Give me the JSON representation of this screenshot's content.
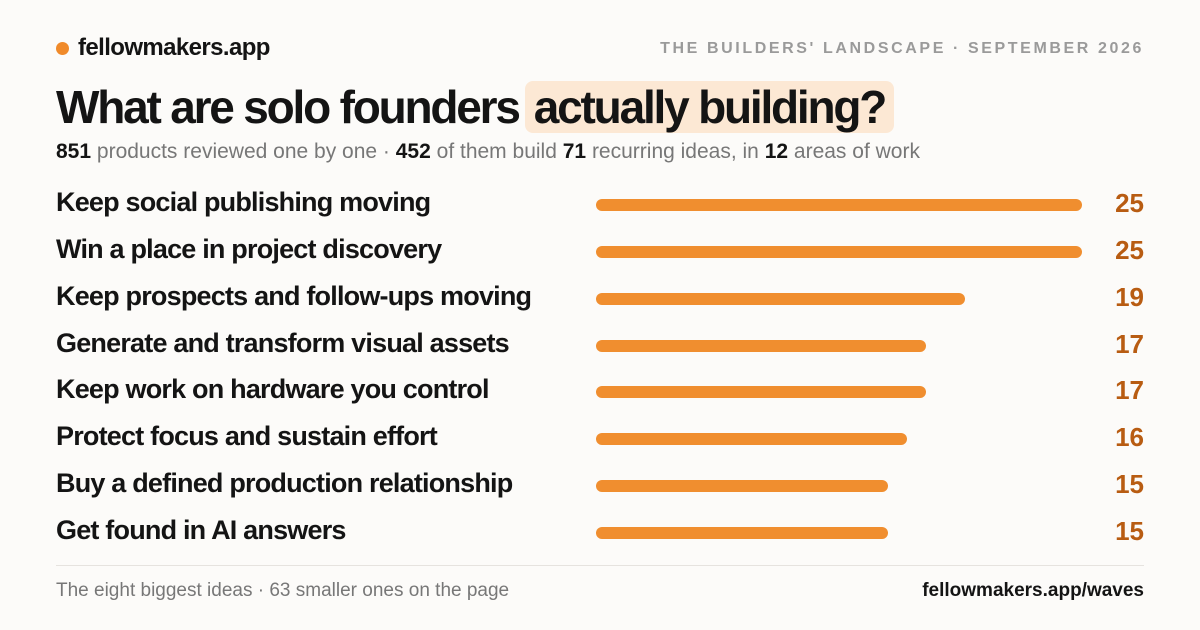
{
  "brand": {
    "name": "fellowmakers.app",
    "accent": "#f08a2a"
  },
  "kicker": "THE BUILDERS' LANDSCAPE · SEPTEMBER 2026",
  "headline": {
    "lead": "What are solo founders",
    "highlight": "actually building?"
  },
  "subline": {
    "products_count": "851",
    "products_text": "products reviewed one by one ·",
    "build_count": "452",
    "build_text": "of them build",
    "ideas_count": "71",
    "ideas_text": "recurring ideas, in",
    "areas_count": "12",
    "areas_text": "areas of work"
  },
  "chart_data": {
    "type": "bar",
    "orientation": "horizontal",
    "categories": [
      "Keep social publishing moving",
      "Win a place in project discovery",
      "Keep prospects and follow-ups moving",
      "Generate and transform visual assets",
      "Keep work on hardware you control",
      "Protect focus and sustain effort",
      "Buy a defined production relationship",
      "Get found in AI answers"
    ],
    "values": [
      25,
      25,
      19,
      17,
      17,
      16,
      15,
      15
    ],
    "xlim": [
      0,
      25
    ],
    "grid": false,
    "bar_color": "#f08e2f",
    "value_color": "#b85c12"
  },
  "footer": {
    "note": "The eight biggest ideas · 63 smaller ones on the page",
    "link": "fellowmakers.app/waves"
  }
}
